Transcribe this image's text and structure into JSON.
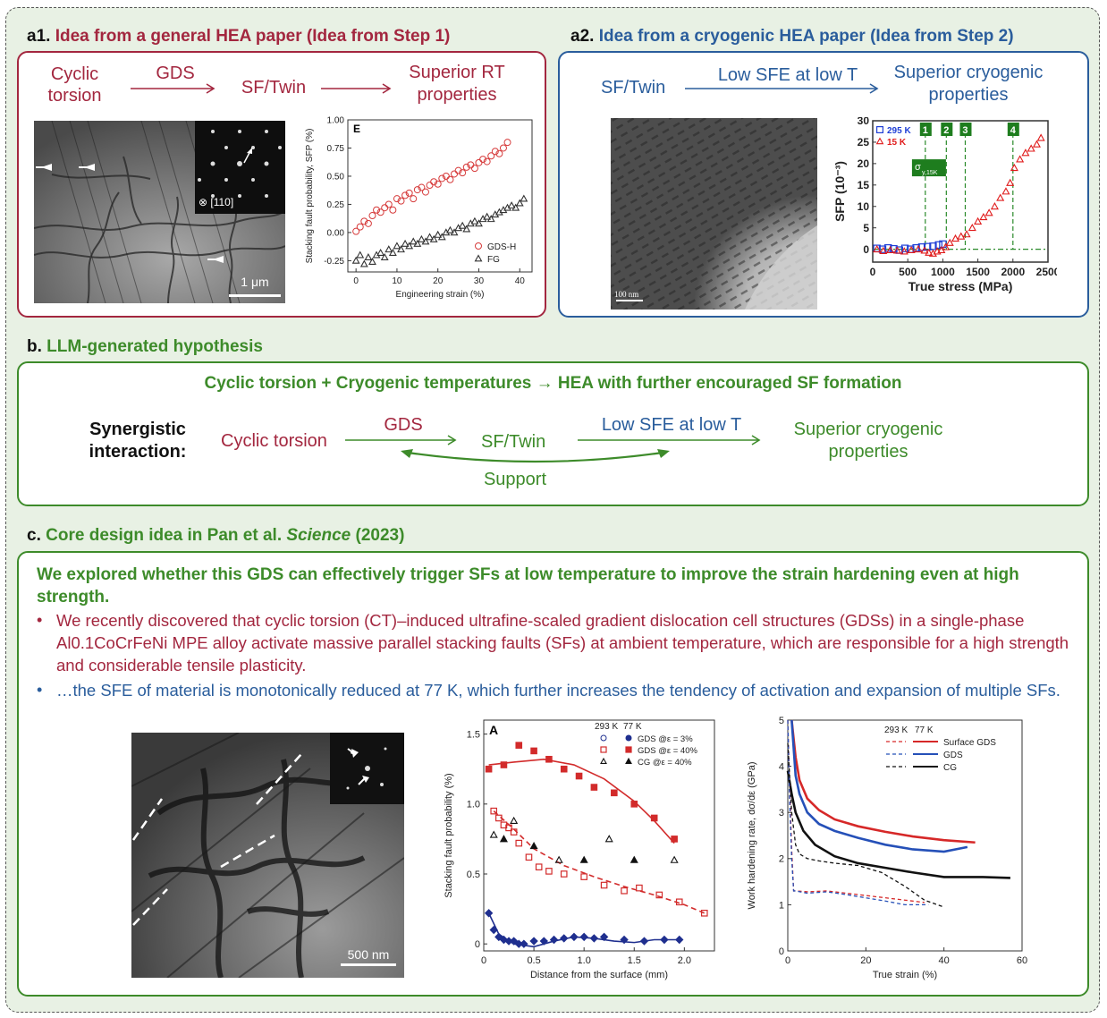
{
  "a1": {
    "heading_prefix": "a1.",
    "heading_text": "Idea from a general HEA paper (Idea from Step 1)",
    "flow": {
      "n1": "Cyclic torsion",
      "arrow1": "GDS",
      "n2": "SF/Twin",
      "n3": "Superior RT properties"
    },
    "micrograph": {
      "inset_label": "⊗ [110]",
      "scalebar": "1 μm"
    }
  },
  "a2": {
    "heading_prefix": "a2.",
    "heading_text": "Idea from a cryogenic HEA paper (Idea from Step 2)",
    "flow": {
      "n1": "SF/Twin",
      "arrow1": "Low SFE at low T",
      "n2": "Superior cryogenic properties"
    },
    "micrograph": {
      "scalebar": "100 nm"
    }
  },
  "b": {
    "heading_prefix": "b.",
    "heading_text": "LLM-generated hypothesis",
    "title": "Cyclic torsion + Cryogenic temperatures → HEA with further encouraged SF formation",
    "synergy_label": "Synergistic interaction:",
    "n1": "Cyclic torsion",
    "arrow1": "GDS",
    "n2": "SF/Twin",
    "arrow2": "Low SFE at low T",
    "n3": "Superior cryogenic properties",
    "support": "Support"
  },
  "c": {
    "heading_prefix": "c.",
    "heading_pre": "Core design idea in Pan et al.",
    "heading_journal": "Science",
    "heading_year": "(2023)",
    "statement": "We explored whether this GDS can effectively trigger SFs at low temperature to improve the strain hardening even at high strength.",
    "bullet1": "We recently discovered that cyclic torsion (CT)–induced ultrafine-scaled gradient dislocation cell structures (GDSs) in a single-phase Al0.1CoCrFeNi MPE alloy activate massive parallel stacking faults (SFs) at ambient temperature, which are responsible for a high strength and considerable tensile plasticity.",
    "bullet2": "…the SFE of material is monotonically reduced at 77 K, which further increases the tendency of activation and expansion of multiple SFs.",
    "micrograph": {
      "scalebar": "500 nm"
    }
  },
  "colors": {
    "red": "#a3273f",
    "blue": "#2a5d9c",
    "green": "#3d8b2a",
    "panel_bg": "#e8f1e4"
  },
  "chart_data": [
    {
      "id": "E",
      "type": "scatter",
      "panel_letter": "E",
      "xlabel": "Engineering strain (%)",
      "ylabel": "Stacking fault probability, SFP (%)",
      "xlim": [
        -2,
        43
      ],
      "ylim": [
        -0.35,
        1.0
      ],
      "xticks": [
        0,
        10,
        20,
        30,
        40
      ],
      "yticks": [
        -0.25,
        0,
        0.25,
        0.5,
        0.75,
        1.0
      ],
      "ytick_labels": [
        "-0.25",
        "0.00",
        "0.25",
        "0.50",
        "0.75",
        "1.00"
      ],
      "legend": "bottom-right",
      "series": [
        {
          "name": "GDS-H",
          "marker": "circle",
          "color": "#d63a3a",
          "x": [
            0,
            1,
            2,
            3,
            4,
            5,
            6,
            7,
            8,
            9,
            10,
            11,
            12,
            13,
            14,
            15,
            16,
            17,
            18,
            19,
            20,
            21,
            22,
            23,
            24,
            25,
            26,
            27,
            28,
            29,
            30,
            31,
            32,
            33,
            34,
            35,
            36,
            37
          ],
          "y": [
            0.01,
            0.05,
            0.1,
            0.08,
            0.15,
            0.2,
            0.18,
            0.22,
            0.25,
            0.2,
            0.3,
            0.28,
            0.33,
            0.35,
            0.3,
            0.38,
            0.4,
            0.36,
            0.42,
            0.45,
            0.43,
            0.48,
            0.5,
            0.47,
            0.52,
            0.55,
            0.53,
            0.58,
            0.6,
            0.57,
            0.62,
            0.65,
            0.63,
            0.68,
            0.72,
            0.7,
            0.75,
            0.8
          ]
        },
        {
          "name": "FG",
          "marker": "triangle",
          "color": "#333333",
          "x": [
            0,
            1,
            2,
            3,
            4,
            5,
            6,
            7,
            8,
            9,
            10,
            11,
            12,
            13,
            14,
            15,
            16,
            17,
            18,
            19,
            20,
            21,
            22,
            23,
            24,
            25,
            26,
            27,
            28,
            29,
            30,
            31,
            32,
            33,
            34,
            35,
            36,
            37,
            38,
            39,
            40,
            41
          ],
          "y": [
            -0.25,
            -0.2,
            -0.28,
            -0.22,
            -0.26,
            -0.2,
            -0.18,
            -0.22,
            -0.15,
            -0.18,
            -0.12,
            -0.15,
            -0.1,
            -0.12,
            -0.08,
            -0.1,
            -0.06,
            -0.08,
            -0.04,
            -0.06,
            -0.02,
            -0.04,
            0.0,
            0.02,
            0.0,
            0.04,
            0.06,
            0.03,
            0.08,
            0.1,
            0.08,
            0.12,
            0.14,
            0.12,
            0.16,
            0.18,
            0.2,
            0.22,
            0.24,
            0.22,
            0.26,
            0.3
          ]
        }
      ]
    },
    {
      "id": "SFP-stress",
      "type": "scatter",
      "xlabel": "True stress (MPa)",
      "ylabel": "SFP (10⁻³)",
      "xlim": [
        0,
        2500
      ],
      "ylim": [
        -3,
        30
      ],
      "xticks": [
        0,
        500,
        1000,
        1500,
        2000,
        2500
      ],
      "yticks": [
        0,
        5,
        10,
        15,
        20,
        25,
        30
      ],
      "legend": "top-left",
      "annotation_sigma": "σ",
      "annotation_sub": "y,15K",
      "stage_labels": [
        "1",
        "2",
        "3",
        "4"
      ],
      "stage_x": [
        750,
        1050,
        1320,
        2000
      ],
      "series": [
        {
          "name": "295 K",
          "marker": "square",
          "color": "#1f3fd6",
          "x": [
            60,
            140,
            220,
            300,
            380,
            460,
            540,
            620,
            700,
            780,
            860,
            940,
            1000
          ],
          "y": [
            0.2,
            0.0,
            0.3,
            0.1,
            -0.2,
            0.2,
            0.0,
            0.3,
            0.5,
            0.6,
            0.7,
            1.0,
            1.2
          ]
        },
        {
          "name": "15 K",
          "marker": "triangle",
          "color": "#e01b1b",
          "x": [
            60,
            150,
            250,
            350,
            450,
            550,
            650,
            740,
            800,
            860,
            920,
            980,
            1040,
            1100,
            1180,
            1260,
            1340,
            1420,
            1500,
            1580,
            1660,
            1740,
            1820,
            1900,
            1960,
            2020,
            2100,
            2180,
            2260,
            2340,
            2400
          ],
          "y": [
            0.0,
            -0.4,
            -0.2,
            -0.3,
            -0.5,
            -0.2,
            0.0,
            -0.3,
            -0.8,
            -1.0,
            -0.5,
            -0.2,
            0.5,
            1.5,
            2.5,
            3.0,
            3.5,
            5.0,
            6.5,
            7.5,
            8.5,
            10.0,
            12.0,
            13.5,
            15.5,
            19.0,
            21.0,
            22.5,
            23.5,
            24.5,
            26.0
          ]
        }
      ]
    },
    {
      "id": "A",
      "type": "scatter",
      "panel_letter": "A",
      "xlabel": "Distance from the surface (mm)",
      "ylabel": "Stacking fault probability (%)",
      "xlim": [
        0,
        2.3
      ],
      "ylim": [
        -0.05,
        1.6
      ],
      "xticks": [
        0,
        0.5,
        1.0,
        1.5,
        2.0
      ],
      "xtick_labels": [
        "0",
        "0.5",
        "1.0",
        "1.5",
        "2.0"
      ],
      "yticks": [
        0,
        0.5,
        1.0,
        1.5
      ],
      "ytick_labels": [
        "0",
        "0.5",
        "1.0",
        "1.5"
      ],
      "legend": "top-right",
      "legend_head": [
        "293 K",
        "77 K"
      ],
      "series": [
        {
          "name": "GDS @ε = 3%",
          "marker": "circle",
          "color": "#1f2f8f",
          "filled77": true,
          "x": [
            0.05,
            0.1,
            0.15,
            0.2,
            0.25,
            0.3,
            0.35,
            0.4,
            0.5,
            0.6,
            0.7,
            0.8,
            0.9,
            1.0,
            1.1,
            1.2,
            1.4,
            1.6,
            1.8,
            1.95
          ],
          "y": [
            0.22,
            0.1,
            0.05,
            0.03,
            0.02,
            0.02,
            0.0,
            0.0,
            0.02,
            0.02,
            0.03,
            0.04,
            0.05,
            0.05,
            0.04,
            0.05,
            0.03,
            0.02,
            0.03,
            0.03
          ]
        },
        {
          "name": "GDS @ε = 40%",
          "marker": "square",
          "color": "#d22b2b",
          "x": [
            0.05,
            0.2,
            0.35,
            0.5,
            0.65,
            0.8,
            0.95,
            1.1,
            1.3,
            1.5,
            1.7,
            1.9
          ],
          "y": [
            1.25,
            1.28,
            1.42,
            1.38,
            1.32,
            1.25,
            1.2,
            1.12,
            1.08,
            1.0,
            0.9,
            0.75
          ]
        },
        {
          "name": "GDS @ε = 40% (293 K)",
          "marker": "square-open",
          "color": "#d22b2b",
          "x": [
            0.1,
            0.15,
            0.2,
            0.25,
            0.3,
            0.35,
            0.45,
            0.55,
            0.65,
            0.8,
            1.0,
            1.2,
            1.4,
            1.55,
            1.75,
            1.95,
            2.2
          ],
          "y": [
            0.95,
            0.9,
            0.85,
            0.83,
            0.8,
            0.72,
            0.62,
            0.55,
            0.52,
            0.5,
            0.48,
            0.42,
            0.38,
            0.4,
            0.35,
            0.3,
            0.22
          ]
        },
        {
          "name": "CG @ε = 40%",
          "marker": "triangle",
          "color": "#111111",
          "x": [
            0.1,
            0.2,
            0.3,
            0.5,
            0.75,
            1.0,
            1.25,
            1.5,
            1.9
          ],
          "y": [
            0.78,
            0.75,
            0.88,
            0.7,
            0.6,
            0.6,
            0.75,
            0.6,
            0.6
          ]
        }
      ]
    },
    {
      "id": "WHR",
      "type": "line",
      "xlabel": "True strain (%)",
      "ylabel": "Work hardening rate, dσ/dε (GPa)",
      "xlim": [
        0,
        60
      ],
      "ylim": [
        0,
        5
      ],
      "xticks": [
        0,
        20,
        40,
        60
      ],
      "yticks": [
        0,
        1,
        2,
        3,
        4,
        5
      ],
      "legend": "top-right",
      "legend_head": [
        "293 K",
        "77 K"
      ],
      "series": [
        {
          "name": "Surface GDS 77 K",
          "color": "#d62828",
          "dash": false,
          "x": [
            1,
            2,
            3,
            5,
            8,
            12,
            18,
            25,
            32,
            40,
            48
          ],
          "y": [
            5,
            4.2,
            3.7,
            3.3,
            3.05,
            2.85,
            2.7,
            2.58,
            2.48,
            2.4,
            2.35
          ]
        },
        {
          "name": "GDS 77 K",
          "color": "#2550b8",
          "dash": false,
          "x": [
            1,
            2,
            3,
            5,
            8,
            12,
            18,
            25,
            32,
            40,
            46
          ],
          "y": [
            5,
            3.8,
            3.4,
            3.0,
            2.75,
            2.6,
            2.45,
            2.3,
            2.2,
            2.15,
            2.25
          ]
        },
        {
          "name": "CG 77 K",
          "color": "#111111",
          "dash": false,
          "x": [
            0,
            1,
            2,
            4,
            7,
            12,
            18,
            25,
            32,
            40,
            50,
            57
          ],
          "y": [
            3.9,
            3.4,
            3.0,
            2.6,
            2.3,
            2.05,
            1.9,
            1.8,
            1.7,
            1.6,
            1.6,
            1.58
          ]
        },
        {
          "name": "Surface GDS 293 K",
          "color": "#d62828",
          "dash": true,
          "x": [
            0,
            0.5,
            1,
            1.5,
            2,
            5,
            10,
            15,
            20,
            25,
            30,
            35
          ],
          "y": [
            5,
            3.5,
            2.2,
            1.3,
            1.3,
            1.28,
            1.3,
            1.25,
            1.2,
            1.15,
            1.1,
            1.05
          ]
        },
        {
          "name": "GDS 293 K",
          "color": "#2550b8",
          "dash": true,
          "x": [
            0,
            0.5,
            1,
            1.5,
            2,
            5,
            10,
            15,
            20,
            25,
            30,
            36
          ],
          "y": [
            5,
            3.2,
            2.0,
            1.3,
            1.3,
            1.25,
            1.28,
            1.22,
            1.15,
            1.08,
            1.0,
            1.0
          ]
        },
        {
          "name": "CG 293 K",
          "color": "#111111",
          "dash": true,
          "x": [
            0,
            1,
            2,
            3,
            5,
            8,
            12,
            18,
            24,
            30,
            35,
            40
          ],
          "y": [
            4.5,
            3.0,
            2.3,
            2.1,
            2.0,
            1.95,
            1.9,
            1.85,
            1.7,
            1.4,
            1.1,
            0.95
          ]
        }
      ],
      "legend_items": [
        "Surface GDS",
        "GDS",
        "CG"
      ]
    }
  ]
}
